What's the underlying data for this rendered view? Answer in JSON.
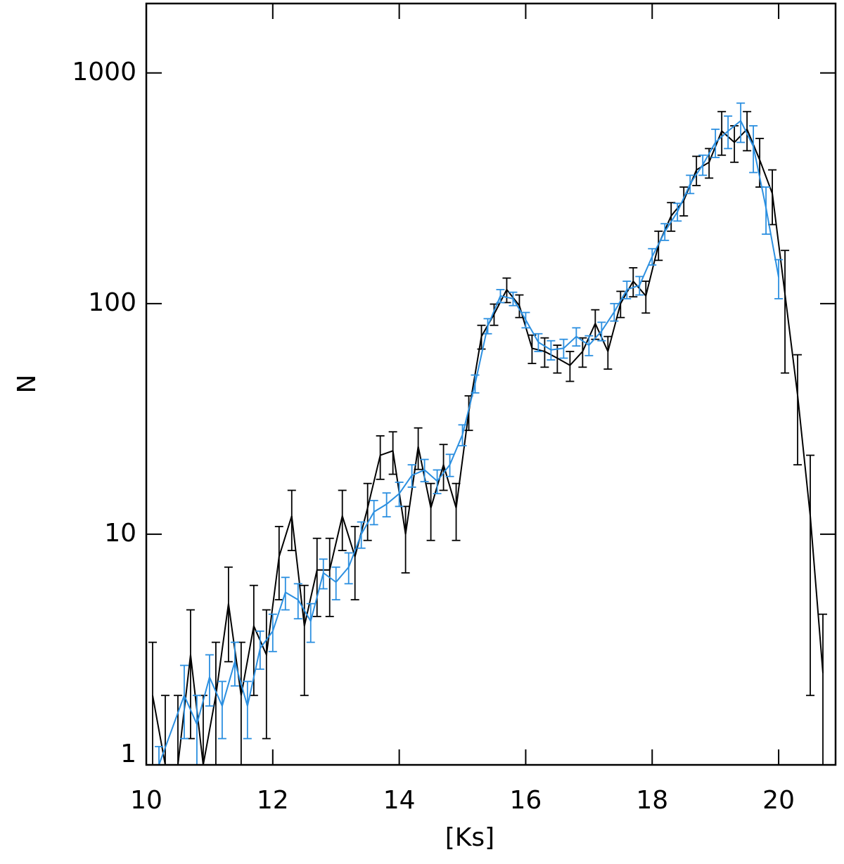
{
  "chart_data": {
    "type": "line",
    "xlabel": "[Ks]",
    "ylabel": "N",
    "xlim": [
      10,
      20.9
    ],
    "ylim": [
      1,
      2000
    ],
    "log_y": true,
    "xticks": [
      10,
      12,
      14,
      16,
      18,
      20
    ],
    "yticks": [
      1,
      10,
      100,
      1000
    ],
    "series": [
      {
        "name": "black",
        "color": "#000000",
        "x": [
          10.1,
          10.3,
          10.5,
          10.7,
          10.9,
          11.1,
          11.3,
          11.5,
          11.7,
          11.9,
          12.1,
          12.3,
          12.5,
          12.7,
          12.9,
          13.1,
          13.3,
          13.5,
          13.7,
          13.9,
          14.1,
          14.3,
          14.5,
          14.7,
          14.9,
          15.1,
          15.3,
          15.5,
          15.7,
          15.9,
          16.1,
          16.3,
          16.5,
          16.7,
          16.9,
          17.1,
          17.3,
          17.5,
          17.7,
          17.9,
          18.1,
          18.3,
          18.5,
          18.7,
          18.9,
          19.1,
          19.3,
          19.5,
          19.7,
          19.9,
          20.1,
          20.3,
          20.5,
          20.7
        ],
        "values": [
          2,
          1,
          1,
          3,
          1,
          2,
          5,
          2,
          4,
          3,
          8,
          12,
          4,
          7,
          7,
          12,
          8,
          13,
          22,
          23,
          10,
          24,
          13,
          20,
          13,
          34,
          72,
          90,
          115,
          98,
          64,
          62,
          58,
          54,
          62,
          82,
          62,
          100,
          125,
          108,
          180,
          240,
          280,
          380,
          410,
          560,
          500,
          570,
          420,
          300,
          110,
          40,
          12,
          2.5
        ],
        "errors": [
          1.4,
          1,
          1,
          1.7,
          1,
          1.4,
          2.2,
          1.4,
          2,
          1.7,
          2.8,
          3.5,
          2,
          2.6,
          2.6,
          3.5,
          2.8,
          3.6,
          4.7,
          4.8,
          3.2,
          4.9,
          3.6,
          4.5,
          3.6,
          5.8,
          8.5,
          9.5,
          14,
          11,
          9,
          9,
          8,
          8,
          9,
          12,
          10,
          13,
          18,
          17,
          26,
          34,
          40,
          55,
          60,
          120,
          90,
          110,
          100,
          80,
          60,
          20,
          10,
          2
        ]
      },
      {
        "name": "blue",
        "color": "#2b8fe0",
        "x": [
          10.2,
          10.6,
          10.8,
          11.0,
          11.2,
          11.4,
          11.6,
          11.8,
          12.0,
          12.2,
          12.4,
          12.6,
          12.8,
          13.0,
          13.2,
          13.4,
          13.6,
          13.8,
          14.0,
          14.2,
          14.4,
          14.6,
          14.8,
          15.0,
          15.2,
          15.4,
          15.6,
          15.8,
          16.0,
          16.2,
          16.4,
          16.6,
          16.8,
          17.0,
          17.2,
          17.4,
          17.6,
          17.8,
          18.0,
          18.2,
          18.4,
          18.6,
          18.8,
          19.0,
          19.2,
          19.4,
          19.6,
          19.8,
          20.0
        ],
        "values": [
          1,
          2,
          1.5,
          2.4,
          1.8,
          2.8,
          1.8,
          3.2,
          3.8,
          5.6,
          5.2,
          4.2,
          6.8,
          6.2,
          7.2,
          10,
          12.5,
          13.5,
          15,
          18,
          19,
          17,
          20,
          27,
          45,
          80,
          108,
          105,
          85,
          68,
          63,
          64,
          72,
          66,
          76,
          92,
          115,
          120,
          160,
          205,
          250,
          330,
          400,
          500,
          560,
          620,
          480,
          260,
          130
        ],
        "errors": [
          0.2,
          0.7,
          0.5,
          0.6,
          0.5,
          0.6,
          0.5,
          0.6,
          0.7,
          0.9,
          0.9,
          0.8,
          1,
          1,
          1.1,
          1.3,
          1.5,
          1.6,
          1.8,
          2,
          2.1,
          2,
          2.2,
          2.8,
          4,
          6,
          7,
          7,
          6.5,
          6,
          6,
          6,
          6.5,
          6.5,
          7,
          8,
          10,
          11,
          13,
          17,
          22,
          30,
          40,
          70,
          90,
          120,
          110,
          60,
          25
        ]
      }
    ]
  }
}
